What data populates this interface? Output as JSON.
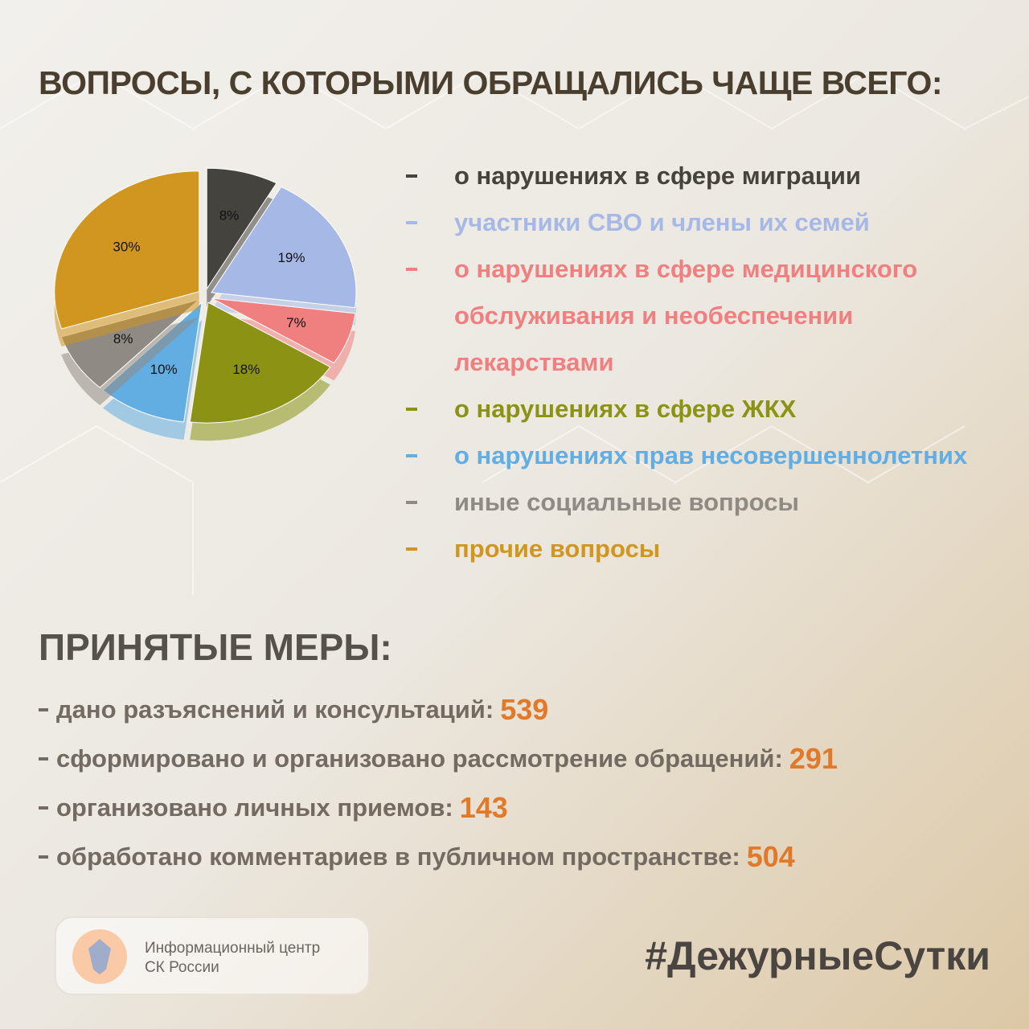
{
  "title": "ВОПРОСЫ, С КОТОРЫМИ ОБРАЩАЛИСЬ ЧАЩЕ ВСЕГО:",
  "chart_data": {
    "type": "pie",
    "categories": [
      "о нарушениях в сфере миграции",
      "участники СВО и члены их семей",
      "о нарушениях в сфере медицинского обслуживания и необеспечении лекарствами",
      "о нарушениях в сфере ЖКХ",
      "о нарушениях прав несовершеннолетних",
      "иные социальные вопросы",
      "прочие вопросы"
    ],
    "values": [
      8,
      19,
      7,
      18,
      10,
      8,
      30
    ],
    "value_labels": [
      "8%",
      "19%",
      "7%",
      "18%",
      "10%",
      "8%",
      "30%"
    ],
    "colors": [
      "#45433e",
      "#a6b9e6",
      "#f07f7f",
      "#8c9314",
      "#62ade2",
      "#8f8a84",
      "#d0961f"
    ]
  },
  "measures": {
    "title": "ПРИНЯТЫЕ МЕРЫ:",
    "items": [
      {
        "label": "дано разъяснений и консультаций:",
        "value": 539
      },
      {
        "label": "сформировано и организовано рассмотрение обращений:",
        "value": 291
      },
      {
        "label": "организовано личных приемов:",
        "value": 143
      },
      {
        "label": "обработано комментариев в публичном пространстве:",
        "value": 504
      }
    ]
  },
  "footer": {
    "org": [
      "Информационный центр",
      "СК России"
    ],
    "hashtag": "#ДежурныеСутки"
  }
}
